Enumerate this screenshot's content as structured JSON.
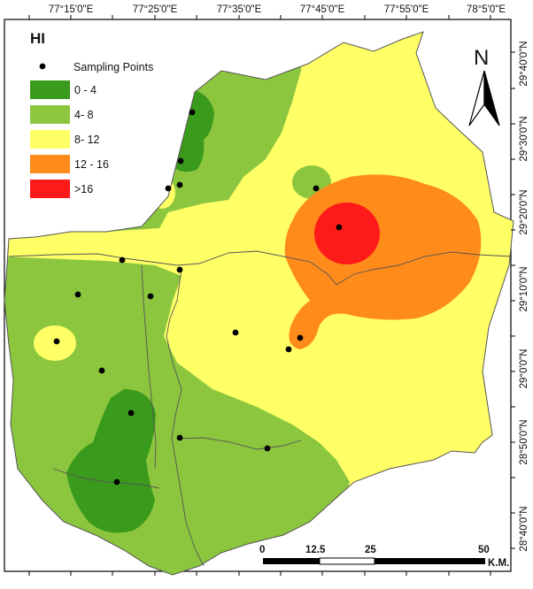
{
  "map": {
    "title": "HI",
    "top_labels": [
      "77°15'0\"E",
      "77°25'0\"E",
      "77°35'0\"E",
      "77°45'0\"E",
      "77°55'0\"E",
      "78°5'0\"E"
    ],
    "right_labels": [
      "29°40'0\"N",
      "29°30'0\"N",
      "29°20'0\"N",
      "29°10'0\"N",
      "29°0'0\"N",
      "28°50'0\"N",
      "28°40'0\"N"
    ],
    "north_label": "N",
    "legend": {
      "sampling_label": "Sampling Points",
      "classes": [
        {
          "label": "0 - 4",
          "color": "#3a9a1c"
        },
        {
          "label": "4- 8",
          "color": "#8cc63f"
        },
        {
          "label": "8- 12",
          "color": "#ffff66"
        },
        {
          "label": "12 - 16",
          "color": "#ff8c1a"
        },
        {
          "label": ">16",
          "color": "#ff1a1a"
        }
      ]
    },
    "scale_bar": {
      "ticks": [
        "0",
        "12.5",
        "25",
        "50"
      ],
      "unit": "K.M."
    },
    "colors": {
      "zone_0_4": "#3a9a1c",
      "zone_4_8": "#8cc63f",
      "zone_8_12": "#ffff66",
      "zone_12_16": "#ff8c1a",
      "zone_gt16": "#ff1a1a",
      "boundary": "#555555"
    }
  }
}
